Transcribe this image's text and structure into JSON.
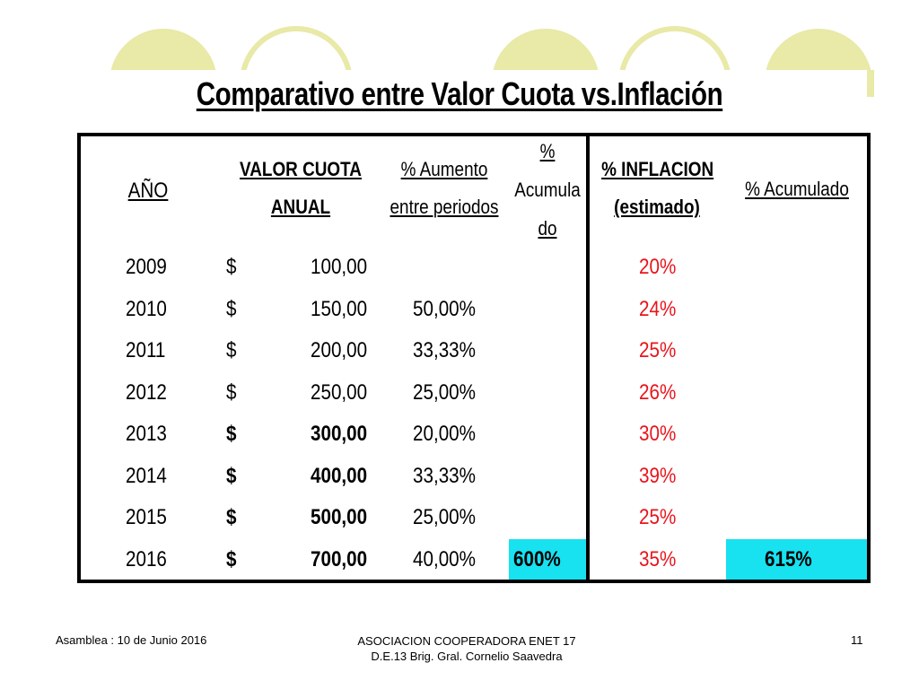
{
  "title": "Comparativo entre Valor Cuota vs.Inflación",
  "headers": {
    "year": "AÑO",
    "valor_l1": "VALOR CUOTA",
    "valor_l2": "ANUAL",
    "aumento_l1": "% Aumento",
    "aumento_l2": "entre periodos",
    "acum_l1": "%",
    "acum_l2": "Acumula",
    "acum_l3": "do",
    "infl_l1": "% INFLACION",
    "infl_l2": "(estimado)",
    "acum2": "% Acumulado"
  },
  "rows": [
    {
      "year": "2009",
      "currency": "$",
      "value": "100,00",
      "aumento": "",
      "acumulado": "",
      "inflacion": "20%",
      "acumulado2": "",
      "bold": false
    },
    {
      "year": "2010",
      "currency": "$",
      "value": "150,00",
      "aumento": "50,00%",
      "acumulado": "",
      "inflacion": "24%",
      "acumulado2": "",
      "bold": false
    },
    {
      "year": "2011",
      "currency": "$",
      "value": "200,00",
      "aumento": "33,33%",
      "acumulado": "",
      "inflacion": "25%",
      "acumulado2": "",
      "bold": false
    },
    {
      "year": "2012",
      "currency": "$",
      "value": "250,00",
      "aumento": "25,00%",
      "acumulado": "",
      "inflacion": "26%",
      "acumulado2": "",
      "bold": false
    },
    {
      "year": "2013",
      "currency": "$",
      "value": "300,00",
      "aumento": "20,00%",
      "acumulado": "",
      "inflacion": "30%",
      "acumulado2": "",
      "bold": true
    },
    {
      "year": "2014",
      "currency": "$",
      "value": "400,00",
      "aumento": "33,33%",
      "acumulado": "",
      "inflacion": "39%",
      "acumulado2": "",
      "bold": true
    },
    {
      "year": "2015",
      "currency": "$",
      "value": "500,00",
      "aumento": "25,00%",
      "acumulado": "",
      "inflacion": "25%",
      "acumulado2": "",
      "bold": true
    },
    {
      "year": "2016",
      "currency": "$",
      "value": "700,00",
      "aumento": "40,00%",
      "acumulado": "600%",
      "inflacion": "35%",
      "acumulado2": "615%",
      "bold": true
    }
  ],
  "footer": {
    "left": "Asamblea : 10 de Junio 2016",
    "center_l1": "ASOCIACION COOPERADORA ENET 17",
    "center_l2": "D.E.13 Brig. Gral. Cornelio Saavedra",
    "page": "11"
  },
  "colors": {
    "decor": "#e9e9a8",
    "inflation_text": "#e8141b",
    "highlight": "#18e1f0"
  }
}
